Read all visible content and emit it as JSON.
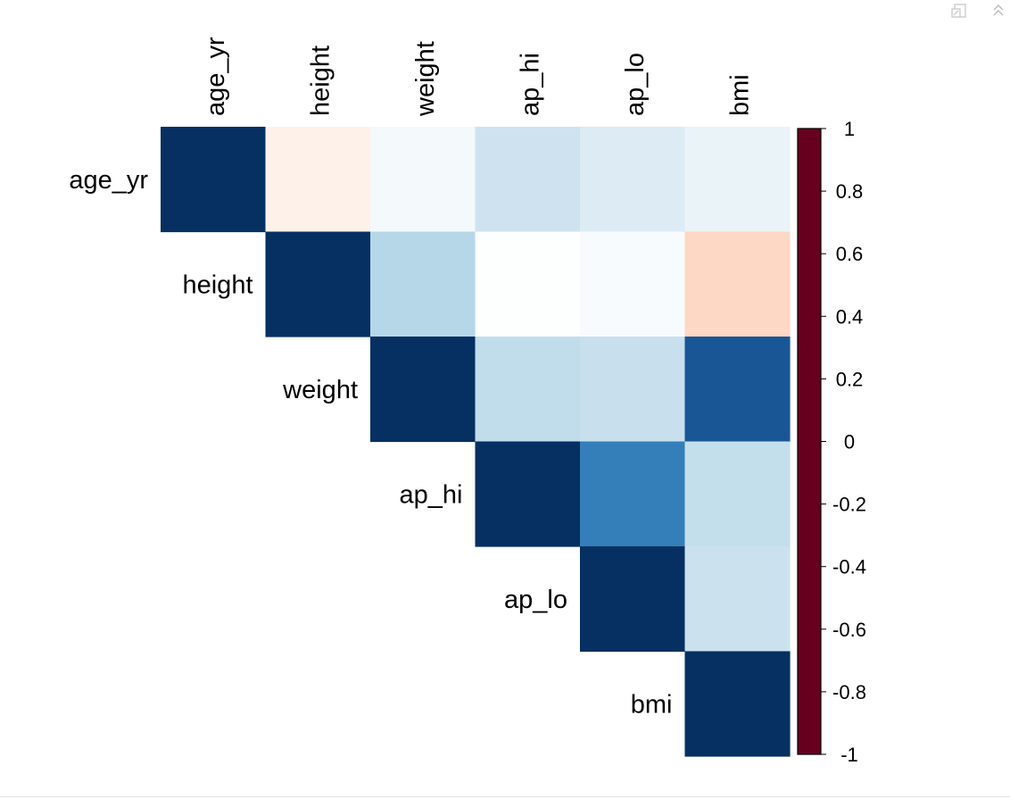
{
  "chart_data": {
    "type": "heatmap",
    "variables": [
      "age_yr",
      "height",
      "weight",
      "ap_hi",
      "ap_lo",
      "bmi"
    ],
    "matrix_shape": "upper-triangular",
    "values": [
      [
        1.0,
        -0.08,
        0.05,
        0.21,
        0.15,
        0.09
      ],
      [
        null,
        1.0,
        0.29,
        0.01,
        0.03,
        -0.21
      ],
      [
        null,
        null,
        1.0,
        0.25,
        0.23,
        0.86
      ],
      [
        null,
        null,
        null,
        1.0,
        0.69,
        0.24
      ],
      [
        null,
        null,
        null,
        null,
        1.0,
        0.22
      ],
      [
        null,
        null,
        null,
        null,
        null,
        1.0
      ]
    ],
    "color_scale": {
      "min": -1,
      "max": 1,
      "stops": [
        {
          "value": -1.0,
          "color": "#67001F"
        },
        {
          "value": -0.8,
          "color": "#B2182B"
        },
        {
          "value": -0.6,
          "color": "#D6604D"
        },
        {
          "value": -0.4,
          "color": "#F4A582"
        },
        {
          "value": -0.2,
          "color": "#FDDBC7"
        },
        {
          "value": 0.0,
          "color": "#FFFFFF"
        },
        {
          "value": 0.2,
          "color": "#D1E5F0"
        },
        {
          "value": 0.4,
          "color": "#92C5DE"
        },
        {
          "value": 0.6,
          "color": "#4393C3"
        },
        {
          "value": 0.8,
          "color": "#2166AC"
        },
        {
          "value": 1.0,
          "color": "#053061"
        }
      ],
      "tick_labels": [
        "1",
        "0.8",
        "0.6",
        "0.4",
        "0.2",
        "0",
        "-0.2",
        "-0.4",
        "-0.6",
        "-0.8",
        "-1"
      ]
    },
    "legend_position": "right",
    "grid": false,
    "title": "",
    "xlabel": "",
    "ylabel": ""
  },
  "toolbar": {
    "export_icon": "export-icon",
    "collapse_icon": "collapse-icon"
  }
}
